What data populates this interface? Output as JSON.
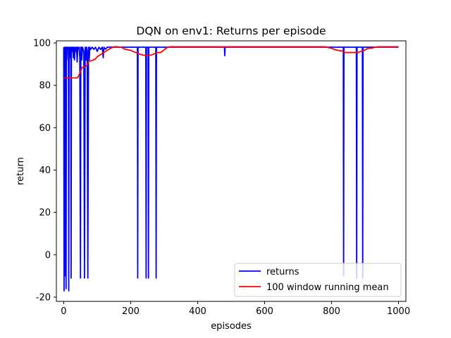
{
  "chart_data": {
    "type": "line",
    "title": "DQN on env1: Returns per episode",
    "xlabel": "episodes",
    "ylabel": "return",
    "xlim": [
      -22,
      1022
    ],
    "ylim": [
      -22,
      101
    ],
    "xticks": [
      0,
      200,
      400,
      600,
      800,
      1000
    ],
    "yticks": [
      -20,
      0,
      20,
      40,
      60,
      80,
      100
    ],
    "grid": false,
    "legend_placement": "lower right",
    "series": [
      {
        "name": "returns",
        "color": "#0000ff",
        "x": [
          0,
          1,
          2,
          3,
          4,
          5,
          6,
          7,
          8,
          9,
          10,
          12,
          14,
          15,
          16,
          18,
          20,
          21,
          22,
          23,
          25,
          27,
          29,
          30,
          32,
          34,
          36,
          38,
          40,
          42,
          44,
          46,
          48,
          50,
          51,
          52,
          53,
          54,
          56,
          58,
          60,
          62,
          64,
          66,
          67,
          68,
          70,
          72,
          74,
          75,
          76,
          78,
          80,
          85,
          90,
          95,
          100,
          105,
          110,
          115,
          118,
          120,
          125,
          130,
          140,
          150,
          160,
          180,
          200,
          220,
          221,
          222,
          230,
          240,
          245,
          246,
          247,
          250,
          252,
          253,
          254,
          260,
          270,
          275,
          276,
          277,
          290,
          300,
          350,
          400,
          450,
          480,
          481,
          482,
          500,
          600,
          700,
          800,
          835,
          836,
          837,
          840,
          870,
          874,
          875,
          876,
          880,
          890,
          892,
          893,
          894,
          900,
          950,
          1000
        ],
        "y": [
          98,
          -17,
          91,
          98,
          97,
          -10,
          98,
          -16,
          98,
          92,
          97,
          98,
          97,
          -17,
          98,
          93,
          98,
          97,
          -11,
          98,
          96,
          98,
          93,
          98,
          92,
          98,
          96,
          98,
          91,
          98,
          97,
          98,
          93,
          -11,
          98,
          97,
          98,
          92,
          98,
          97,
          96,
          -11,
          98,
          97,
          92,
          98,
          96,
          -11,
          98,
          97,
          92,
          98,
          97,
          98,
          97,
          98,
          96,
          98,
          97,
          98,
          93,
          98,
          97,
          98,
          98,
          98,
          98,
          98,
          98,
          98,
          -11,
          98,
          98,
          98,
          98,
          -11,
          98,
          98,
          98,
          -11,
          98,
          98,
          98,
          98,
          -11,
          98,
          98,
          98,
          98,
          98,
          98,
          98,
          94,
          98,
          98,
          98,
          98,
          98,
          98,
          -10,
          98,
          98,
          98,
          98,
          -11,
          98,
          98,
          98,
          98,
          -11,
          98,
          98,
          98,
          98
        ]
      },
      {
        "name": "100 window running mean",
        "color": "#ff0000",
        "x": [
          0,
          5,
          10,
          20,
          30,
          40,
          45,
          50,
          55,
          60,
          70,
          75,
          80,
          85,
          90,
          95,
          100,
          110,
          120,
          130,
          140,
          150,
          160,
          170,
          175,
          180,
          190,
          200,
          210,
          220,
          230,
          240,
          250,
          260,
          270,
          280,
          290,
          300,
          310,
          320,
          330,
          340,
          400,
          500,
          600,
          700,
          780,
          790,
          800,
          810,
          830,
          840,
          880,
          890,
          895,
          900,
          910,
          920,
          930,
          940,
          950,
          960,
          980,
          1000
        ],
        "y": [
          83.5,
          83.5,
          83.5,
          83.5,
          83.5,
          83.5,
          84.5,
          86.5,
          88.5,
          88.5,
          89.5,
          91.5,
          91.5,
          91.8,
          92.0,
          92.5,
          93.5,
          94.5,
          95.5,
          96.5,
          97.5,
          98.2,
          98.2,
          98.0,
          97.8,
          97.2,
          96.8,
          96.5,
          95.8,
          95.2,
          94.5,
          94.2,
          94.2,
          94.2,
          94.8,
          95.5,
          95.5,
          96.8,
          98.0,
          98.2,
          98.2,
          98.2,
          98.2,
          98.2,
          98.2,
          98.2,
          98.2,
          97.8,
          97.5,
          96.8,
          96.2,
          95.5,
          95.5,
          96.2,
          96.2,
          96.8,
          97.5,
          97.5,
          98.0,
          98.2,
          98.2,
          98.2,
          98.2,
          98.2
        ]
      }
    ]
  }
}
